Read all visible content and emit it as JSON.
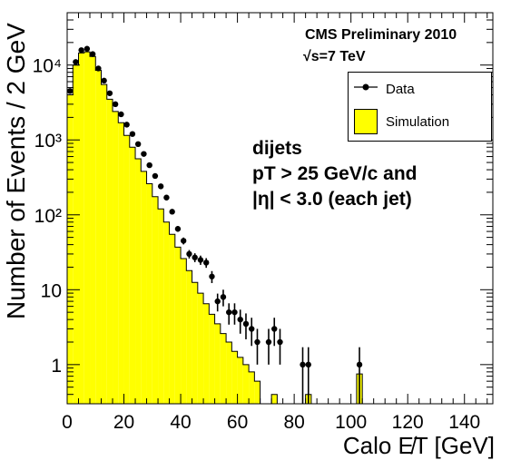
{
  "chart_data": {
    "type": "bar",
    "xlabel": "Calo E̸T [GeV]",
    "ylabel": "Number of Events / 2 GeV",
    "xlim": [
      0,
      150
    ],
    "ylim": [
      0.3,
      50000
    ],
    "yscale": "log",
    "grid": false,
    "legend_position": "top-right",
    "bin_width": 2,
    "x_ticks": [
      "0",
      "20",
      "40",
      "60",
      "80",
      "100",
      "120",
      "140"
    ],
    "y_ticks": [
      {
        "value": 1,
        "label": "1"
      },
      {
        "value": 10,
        "label": "10"
      },
      {
        "value": 100,
        "label": "10²"
      },
      {
        "value": 1000,
        "label": "10³"
      },
      {
        "value": 10000,
        "label": "10⁴"
      }
    ],
    "annotations": [
      "CMS Preliminary 2010",
      "√s=7 TeV"
    ],
    "text_block": [
      "dijets",
      "pT > 25 GeV/c and",
      "|η| < 3.0 (each jet)"
    ],
    "series": [
      {
        "name": "Simulation",
        "style": "filled-histogram",
        "color": "#ffff00",
        "x": [
          1,
          3,
          5,
          7,
          9,
          11,
          13,
          15,
          17,
          19,
          21,
          23,
          25,
          27,
          29,
          31,
          33,
          35,
          37,
          39,
          41,
          43,
          45,
          47,
          49,
          51,
          53,
          55,
          57,
          59,
          61,
          63,
          65,
          67,
          69,
          71,
          73,
          75,
          77,
          79,
          81,
          83,
          85,
          87,
          89,
          91,
          93,
          95,
          97,
          99,
          101,
          103,
          105
        ],
        "values": [
          4000,
          10000,
          14500,
          15000,
          13000,
          8500,
          5500,
          3500,
          2400,
          1700,
          1150,
          800,
          560,
          380,
          260,
          175,
          120,
          80,
          55,
          37,
          26,
          18,
          12.5,
          9,
          6.5,
          4.7,
          3.5,
          2.6,
          2.0,
          1.5,
          1.25,
          1.0,
          0.8,
          0.6,
          0.3,
          0.3,
          0.4,
          0.3,
          0.3,
          0.3,
          0.3,
          0.3,
          0.4,
          0.3,
          0.3,
          0.3,
          0.3,
          0.3,
          0.3,
          0.3,
          0.3,
          0.75,
          0.3
        ]
      },
      {
        "name": "Data",
        "style": "points-with-errors",
        "color": "#000000",
        "x": [
          1,
          3,
          5,
          7,
          9,
          11,
          13,
          15,
          17,
          19,
          21,
          23,
          25,
          27,
          29,
          31,
          33,
          35,
          37,
          39,
          41,
          43,
          45,
          47,
          49,
          51,
          53,
          55,
          57,
          59,
          61,
          63,
          65,
          67,
          71,
          73,
          75,
          83,
          85,
          103
        ],
        "values": [
          4500,
          11000,
          15800,
          16500,
          14000,
          9000,
          6200,
          4200,
          3000,
          2200,
          1600,
          1200,
          880,
          650,
          460,
          330,
          240,
          170,
          110,
          65,
          45,
          30,
          27,
          25,
          23,
          15,
          7,
          8,
          5,
          5,
          4,
          3.5,
          3,
          2,
          2,
          3,
          2,
          1,
          1,
          1
        ]
      }
    ]
  }
}
